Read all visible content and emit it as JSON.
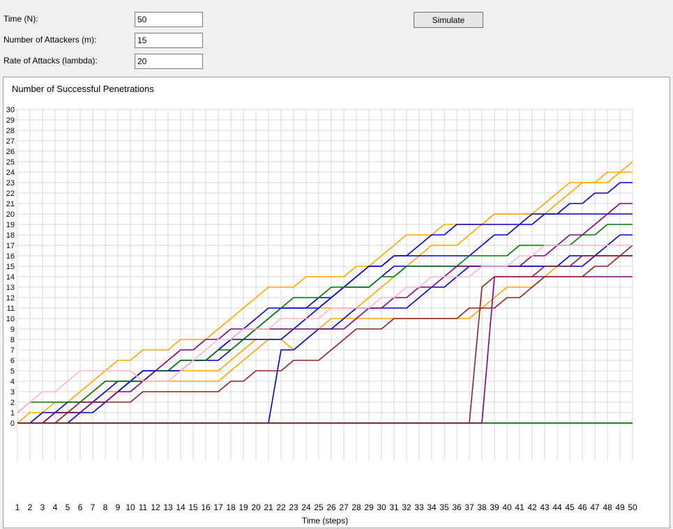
{
  "form": {
    "time_label": "Time (N):",
    "time_value": "50",
    "attackers_label": "Number of Attackers (m):",
    "attackers_value": "15",
    "rate_label": "Rate of Attacks (lambda):",
    "rate_value": "20",
    "simulate_label": "Simulate"
  },
  "chart_data": {
    "type": "line",
    "title": "Number of Successful Penetrations",
    "xlabel": "Time (steps)",
    "ylabel": "",
    "xlim": [
      1,
      50
    ],
    "ylim": [
      0,
      30
    ],
    "grid": true,
    "step": true,
    "x": [
      1,
      2,
      3,
      4,
      5,
      6,
      7,
      8,
      9,
      10,
      11,
      12,
      13,
      14,
      15,
      16,
      17,
      18,
      19,
      20,
      21,
      22,
      23,
      24,
      25,
      26,
      27,
      28,
      29,
      30,
      31,
      32,
      33,
      34,
      35,
      36,
      37,
      38,
      39,
      40,
      41,
      42,
      43,
      44,
      45,
      46,
      47,
      48,
      49,
      50
    ],
    "series": [
      {
        "color": "#ffa500",
        "values": [
          0,
          1,
          1,
          2,
          2,
          3,
          4,
          5,
          6,
          6,
          7,
          7,
          7,
          8,
          8,
          8,
          9,
          10,
          11,
          12,
          13,
          13,
          13,
          14,
          14,
          14,
          14,
          15,
          15,
          16,
          17,
          18,
          18,
          18,
          19,
          19,
          19,
          19,
          20,
          20,
          20,
          20,
          20,
          21,
          22,
          23,
          23,
          23,
          24,
          25
        ]
      },
      {
        "color": "#ffa500",
        "values": [
          0,
          0,
          0,
          1,
          1,
          2,
          3,
          4,
          4,
          4,
          4,
          4,
          4,
          4,
          4,
          4,
          4,
          5,
          6,
          7,
          8,
          8,
          9,
          10,
          11,
          11,
          11,
          11,
          12,
          13,
          14,
          15,
          16,
          17,
          17,
          17,
          18,
          19,
          20,
          20,
          20,
          20,
          21,
          22,
          23,
          23,
          23,
          24,
          24,
          24
        ]
      },
      {
        "color": "#ffa500",
        "values": [
          0,
          0,
          0,
          0,
          1,
          1,
          2,
          3,
          3,
          4,
          4,
          5,
          5,
          5,
          5,
          5,
          5,
          6,
          7,
          8,
          8,
          8,
          7,
          8,
          9,
          10,
          10,
          10,
          10,
          10,
          10,
          10,
          10,
          10,
          10,
          10,
          10,
          11,
          12,
          13,
          13,
          13,
          14,
          15,
          16,
          16,
          16,
          16,
          16,
          16
        ]
      },
      {
        "color": "#0000cc",
        "values": [
          0,
          0,
          0,
          1,
          1,
          1,
          2,
          3,
          4,
          4,
          5,
          5,
          5,
          5,
          6,
          6,
          6,
          7,
          8,
          9,
          10,
          11,
          11,
          11,
          12,
          12,
          13,
          14,
          15,
          15,
          16,
          16,
          16,
          16,
          16,
          16,
          16,
          17,
          18,
          18,
          19,
          19,
          20,
          20,
          21,
          21,
          22,
          22,
          23,
          23
        ]
      },
      {
        "color": "#0000cc",
        "values": [
          0,
          0,
          0,
          0,
          0,
          1,
          1,
          2,
          3,
          4,
          4,
          5,
          5,
          6,
          6,
          6,
          7,
          8,
          9,
          10,
          11,
          11,
          11,
          11,
          11,
          12,
          13,
          14,
          15,
          15,
          16,
          16,
          17,
          18,
          18,
          19,
          19,
          19,
          19,
          19,
          19,
          20,
          20,
          20,
          20,
          20,
          20,
          20,
          20,
          20
        ]
      },
      {
        "color": "#0000cc",
        "values": [
          0,
          0,
          1,
          1,
          2,
          2,
          2,
          2,
          3,
          4,
          5,
          5,
          5,
          5,
          6,
          6,
          7,
          8,
          8,
          8,
          8,
          8,
          9,
          10,
          11,
          12,
          13,
          13,
          13,
          14,
          15,
          15,
          15,
          15,
          15,
          15,
          15,
          15,
          15,
          15,
          15,
          15,
          15,
          15,
          15,
          15,
          16,
          17,
          18,
          18
        ]
      },
      {
        "color": "#0000cc",
        "values": [
          0,
          0,
          0,
          0,
          0,
          0,
          0,
          0,
          0,
          0,
          0,
          0,
          0,
          0,
          0,
          0,
          0,
          0,
          0,
          0,
          0,
          7,
          7,
          8,
          9,
          9,
          10,
          11,
          11,
          11,
          11,
          11,
          12,
          13,
          13,
          14,
          15,
          15,
          15,
          15,
          15,
          15,
          15,
          15,
          16,
          16,
          16,
          16,
          16,
          16
        ]
      },
      {
        "color": "#007700",
        "values": [
          1,
          2,
          2,
          2,
          2,
          2,
          3,
          4,
          4,
          4,
          4,
          5,
          5,
          6,
          6,
          6,
          7,
          7,
          8,
          9,
          10,
          11,
          12,
          12,
          12,
          13,
          13,
          13,
          13,
          14,
          14,
          15,
          15,
          15,
          15,
          15,
          16,
          16,
          16,
          16,
          17,
          17,
          17,
          17,
          17,
          18,
          18,
          19,
          19,
          19
        ]
      },
      {
        "color": "#007700",
        "values": [
          0,
          0,
          0,
          0,
          0,
          0,
          0,
          0,
          0,
          0,
          0,
          0,
          0,
          0,
          0,
          0,
          0,
          0,
          0,
          0,
          0,
          0,
          0,
          0,
          0,
          0,
          0,
          0,
          0,
          0,
          0,
          0,
          0,
          0,
          0,
          0,
          0,
          0,
          0,
          0,
          0,
          0,
          0,
          0,
          0,
          0,
          0,
          0,
          0,
          0
        ]
      },
      {
        "color": "#007700",
        "values": [
          0,
          0,
          0,
          0,
          0,
          0,
          0,
          0,
          0,
          0,
          0,
          0,
          0,
          0,
          0,
          0,
          0,
          0,
          0,
          0,
          0,
          0,
          0,
          0,
          0,
          0,
          0,
          0,
          0,
          0,
          0,
          0,
          0,
          0,
          0,
          0,
          0,
          0,
          0,
          0,
          0,
          0,
          0,
          0,
          0,
          0,
          0,
          0,
          0,
          0
        ]
      },
      {
        "color": "#800080",
        "values": [
          0,
          0,
          0,
          1,
          1,
          1,
          2,
          2,
          3,
          3,
          4,
          5,
          6,
          7,
          7,
          8,
          8,
          9,
          9,
          9,
          9,
          9,
          9,
          9,
          9,
          9,
          9,
          10,
          11,
          11,
          12,
          12,
          13,
          13,
          14,
          15,
          15,
          15,
          15,
          15,
          15,
          16,
          16,
          17,
          18,
          18,
          19,
          20,
          21,
          21
        ]
      },
      {
        "color": "#800080",
        "values": [
          0,
          0,
          0,
          0,
          0,
          0,
          0,
          0,
          0,
          0,
          0,
          0,
          0,
          0,
          0,
          0,
          0,
          0,
          0,
          0,
          0,
          0,
          0,
          0,
          0,
          0,
          0,
          0,
          0,
          0,
          0,
          0,
          0,
          0,
          0,
          0,
          0,
          0,
          14,
          14,
          14,
          14,
          14,
          14,
          14,
          14,
          14,
          14,
          14,
          14
        ]
      },
      {
        "color": "#8b2323",
        "values": [
          0,
          0,
          0,
          0,
          1,
          2,
          2,
          2,
          2,
          2,
          3,
          3,
          3,
          3,
          3,
          3,
          3,
          4,
          4,
          5,
          5,
          5,
          6,
          6,
          6,
          7,
          8,
          9,
          9,
          9,
          10,
          10,
          10,
          10,
          10,
          10,
          11,
          11,
          11,
          12,
          12,
          13,
          14,
          14,
          14,
          14,
          15,
          15,
          16,
          17
        ]
      },
      {
        "color": "#8b2323",
        "values": [
          0,
          0,
          0,
          0,
          0,
          0,
          0,
          0,
          0,
          0,
          0,
          0,
          0,
          0,
          0,
          0,
          0,
          0,
          0,
          0,
          0,
          0,
          0,
          0,
          0,
          0,
          0,
          0,
          0,
          0,
          0,
          0,
          0,
          0,
          0,
          0,
          0,
          13,
          14,
          14,
          14,
          14,
          15,
          15,
          15,
          16,
          16,
          16,
          16,
          16
        ]
      },
      {
        "color": "#ffb6c1",
        "values": [
          1,
          2,
          3,
          3,
          4,
          5,
          5,
          5,
          5,
          5,
          4,
          4,
          4,
          5,
          6,
          7,
          8,
          8,
          9,
          9,
          9,
          10,
          10,
          10,
          10,
          11,
          11,
          11,
          11,
          12,
          12,
          13,
          13,
          14,
          14,
          14,
          14,
          15,
          15,
          15,
          16,
          16,
          17,
          17,
          17,
          17,
          17,
          17,
          17,
          17
        ]
      }
    ]
  }
}
